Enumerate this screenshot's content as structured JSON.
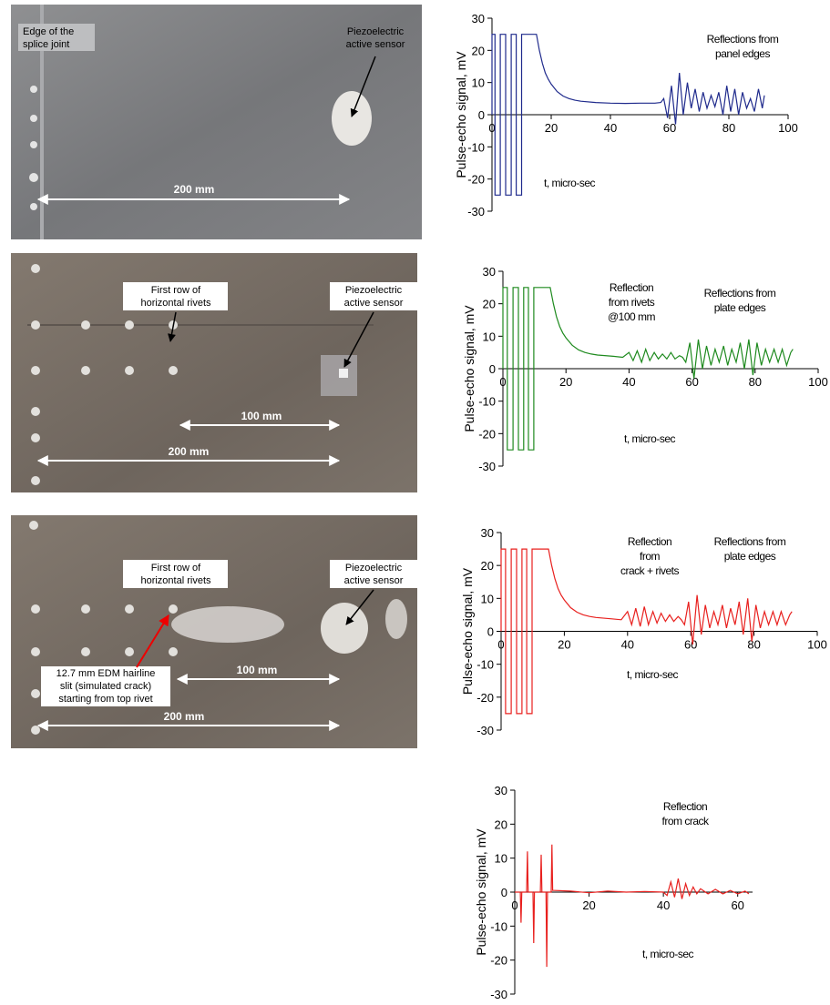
{
  "photos": [
    {
      "labels": [
        [
          "Edge of the",
          "splice joint"
        ],
        [
          "Piezoelectric",
          "active sensor"
        ],
        [
          "200 mm"
        ]
      ]
    },
    {
      "labels": [
        [
          "First row of",
          "horizontal rivets"
        ],
        [
          "Piezoelectric",
          "active sensor"
        ],
        [
          "100 mm"
        ],
        [
          "200 mm"
        ]
      ]
    },
    {
      "labels": [
        [
          "First row of",
          "horizontal rivets"
        ],
        [
          "Piezoelectric",
          "active sensor"
        ],
        [
          "12.7 mm EDM hairline",
          "slit (simulated crack)",
          "starting from top rivet"
        ],
        [
          "100 mm"
        ],
        [
          "200 mm"
        ]
      ]
    }
  ],
  "chart_data": [
    {
      "type": "line",
      "y_label": "Pulse-echo signal, mV",
      "x_label": "t, micro-sec",
      "annotations": [
        [
          "Reflections from",
          "panel edges"
        ]
      ],
      "xlim": [
        0,
        100
      ],
      "ylim": [
        -30,
        30
      ],
      "xticks": [
        0,
        20,
        40,
        60,
        80,
        100
      ],
      "yticks": [
        -30,
        -20,
        -10,
        0,
        10,
        20,
        30
      ],
      "x": [
        0,
        0,
        1,
        1,
        2.8,
        2.8,
        4.6,
        4.6,
        6.5,
        6.5,
        8.2,
        8.2,
        10,
        10,
        15,
        16,
        17,
        18,
        19,
        20,
        22,
        24,
        26,
        28,
        30,
        35,
        40,
        45,
        50,
        55,
        57,
        58,
        59.3,
        60.6,
        62,
        63.3,
        64.6,
        66,
        67.3,
        68.6,
        70,
        71.3,
        72.6,
        74,
        75.3,
        76.6,
        78,
        79.3,
        80.6,
        82,
        83.3,
        84.6,
        86,
        87.3,
        88.6,
        90,
        91.3,
        92
      ],
      "series": [
        {
          "color": "#1f2a8c",
          "values": [
            0,
            25,
            25,
            -25,
            -25,
            25,
            25,
            -25,
            -25,
            25,
            25,
            -25,
            -25,
            25,
            25,
            20,
            16,
            13,
            11,
            9.5,
            7.2,
            5.8,
            5,
            4.5,
            4.2,
            3.8,
            3.6,
            3.5,
            3.6,
            3.6,
            3.8,
            5,
            -1,
            9,
            -3,
            13,
            0,
            10,
            2,
            8,
            1,
            7,
            2,
            6,
            2.5,
            7,
            0,
            9,
            1,
            8,
            0,
            7,
            2,
            5,
            1,
            8,
            2,
            6
          ]
        }
      ]
    },
    {
      "type": "line",
      "y_label": "Pulse-echo signal, mV",
      "x_label": "t, micro-sec",
      "annotations": [
        [
          "Reflection",
          "from rivets",
          "@100 mm"
        ],
        [
          "Reflections from",
          "plate edges"
        ]
      ],
      "xlim": [
        0,
        100
      ],
      "ylim": [
        -30,
        30
      ],
      "xticks": [
        0,
        20,
        40,
        60,
        80,
        100
      ],
      "yticks": [
        -30,
        -20,
        -10,
        0,
        10,
        20,
        30
      ],
      "x": [
        0,
        0,
        1.4,
        1.4,
        3.2,
        3.2,
        4.9,
        4.9,
        6.6,
        6.6,
        8.1,
        8.1,
        9.8,
        9.8,
        15,
        16,
        17,
        18,
        19,
        20,
        22,
        24,
        26,
        28,
        30,
        35,
        38,
        40,
        41.3,
        42.6,
        44,
        45.3,
        46.6,
        48,
        49.3,
        50.6,
        52,
        53.3,
        54.6,
        56,
        57,
        58,
        59.3,
        60.6,
        62,
        63.3,
        64.6,
        66,
        67.3,
        68.6,
        70,
        71.3,
        72.6,
        74,
        75.3,
        76.6,
        78,
        79.3,
        80.6,
        82,
        83.3,
        84.6,
        86,
        87.3,
        88.6,
        90,
        91.3,
        92
      ],
      "series": [
        {
          "color": "#1e8a1e",
          "values": [
            0,
            25,
            25,
            -25,
            -25,
            25,
            25,
            -25,
            -25,
            25,
            25,
            -25,
            -25,
            25,
            25,
            20,
            16,
            13,
            11,
            9.5,
            7.2,
            5.8,
            5,
            4.5,
            4.2,
            3.8,
            3.5,
            5,
            2.5,
            5.5,
            2,
            6,
            2.5,
            5,
            3,
            4.5,
            3,
            5,
            3,
            4,
            3.5,
            2,
            8,
            -3,
            9,
            0,
            7,
            1,
            6,
            2,
            7,
            1,
            6,
            2,
            8,
            0,
            9,
            -2,
            8,
            1,
            6,
            2,
            6,
            2,
            6,
            1,
            5,
            6
          ]
        }
      ]
    },
    {
      "type": "line",
      "y_label": "Pulse-echo signal, mV",
      "x_label": "t, micro-sec",
      "annotations": [
        [
          "Reflection",
          "from",
          "crack + rivets"
        ],
        [
          "Reflections from",
          "plate edges"
        ]
      ],
      "xlim": [
        0,
        100
      ],
      "ylim": [
        -30,
        30
      ],
      "xticks": [
        0,
        20,
        40,
        60,
        80,
        100
      ],
      "yticks": [
        -30,
        -20,
        -10,
        0,
        10,
        20,
        30
      ],
      "x": [
        0,
        0,
        1.4,
        1.4,
        3.2,
        3.2,
        4.9,
        4.9,
        6.6,
        6.6,
        8.1,
        8.1,
        9.8,
        9.8,
        15,
        16,
        17,
        18,
        19,
        20,
        22,
        24,
        26,
        28,
        30,
        35,
        38,
        40,
        41.3,
        42.6,
        44,
        45.3,
        46.6,
        48,
        49.3,
        50.6,
        52,
        53.3,
        54.6,
        56,
        57,
        58,
        59.3,
        60.6,
        62,
        63.3,
        64.6,
        66,
        67.3,
        68.6,
        70,
        71.3,
        72.6,
        74,
        75.3,
        76.6,
        78,
        79.3,
        80.6,
        82,
        83.3,
        84.6,
        86,
        87.3,
        88.6,
        90,
        91.3,
        92
      ],
      "series": [
        {
          "color": "#e8201e",
          "values": [
            0,
            25,
            25,
            -25,
            -25,
            25,
            25,
            -25,
            -25,
            25,
            25,
            -25,
            -25,
            25,
            25,
            20,
            16,
            13,
            11,
            9.5,
            7.2,
            5.8,
            5,
            4.5,
            4.2,
            3.8,
            3.5,
            6,
            2,
            7,
            1.5,
            7.5,
            2,
            6,
            2.5,
            5.5,
            3,
            5,
            3,
            4.5,
            3.5,
            2,
            9,
            -4,
            11,
            -1,
            8,
            1,
            6,
            2,
            8,
            1,
            7,
            2,
            9,
            -1,
            10,
            -3,
            8,
            1,
            6,
            2,
            6,
            2,
            6,
            2,
            5,
            6
          ]
        }
      ]
    },
    {
      "type": "line",
      "y_label": "Pulse-echo signal, mV",
      "x_label": "t, micro-sec",
      "annotations": [
        [
          "Reflection",
          "from crack"
        ]
      ],
      "xlim": [
        0,
        64
      ],
      "ylim": [
        -30,
        30
      ],
      "xticks": [
        0,
        20,
        40,
        60
      ],
      "yticks": [
        -30,
        -20,
        -10,
        0,
        10,
        20,
        30
      ],
      "x": [
        0,
        1.5,
        1.7,
        1.9,
        3.2,
        3.4,
        3.6,
        4.9,
        5.1,
        5.3,
        6.9,
        7.1,
        7.3,
        8.4,
        8.6,
        8.8,
        9.8,
        10,
        10.2,
        15,
        20,
        25,
        30,
        35,
        40,
        41,
        42,
        43,
        44,
        45,
        46,
        47,
        48,
        49,
        50,
        52,
        54,
        56,
        58,
        60,
        62,
        63
      ],
      "series": [
        {
          "color": "#e8201e",
          "values": [
            0,
            0,
            -9,
            0,
            0,
            12,
            0,
            0,
            -15,
            0,
            0,
            11,
            0,
            0,
            -22,
            0,
            0,
            14,
            0.5,
            0.3,
            -0.2,
            0.3,
            0,
            0.2,
            0,
            -1,
            3,
            -1.5,
            4,
            -2,
            2.5,
            -1,
            1.5,
            -0.5,
            1,
            -0.5,
            0.8,
            -0.5,
            0.5,
            -0.5,
            0.3,
            -0.5
          ]
        }
      ]
    }
  ]
}
